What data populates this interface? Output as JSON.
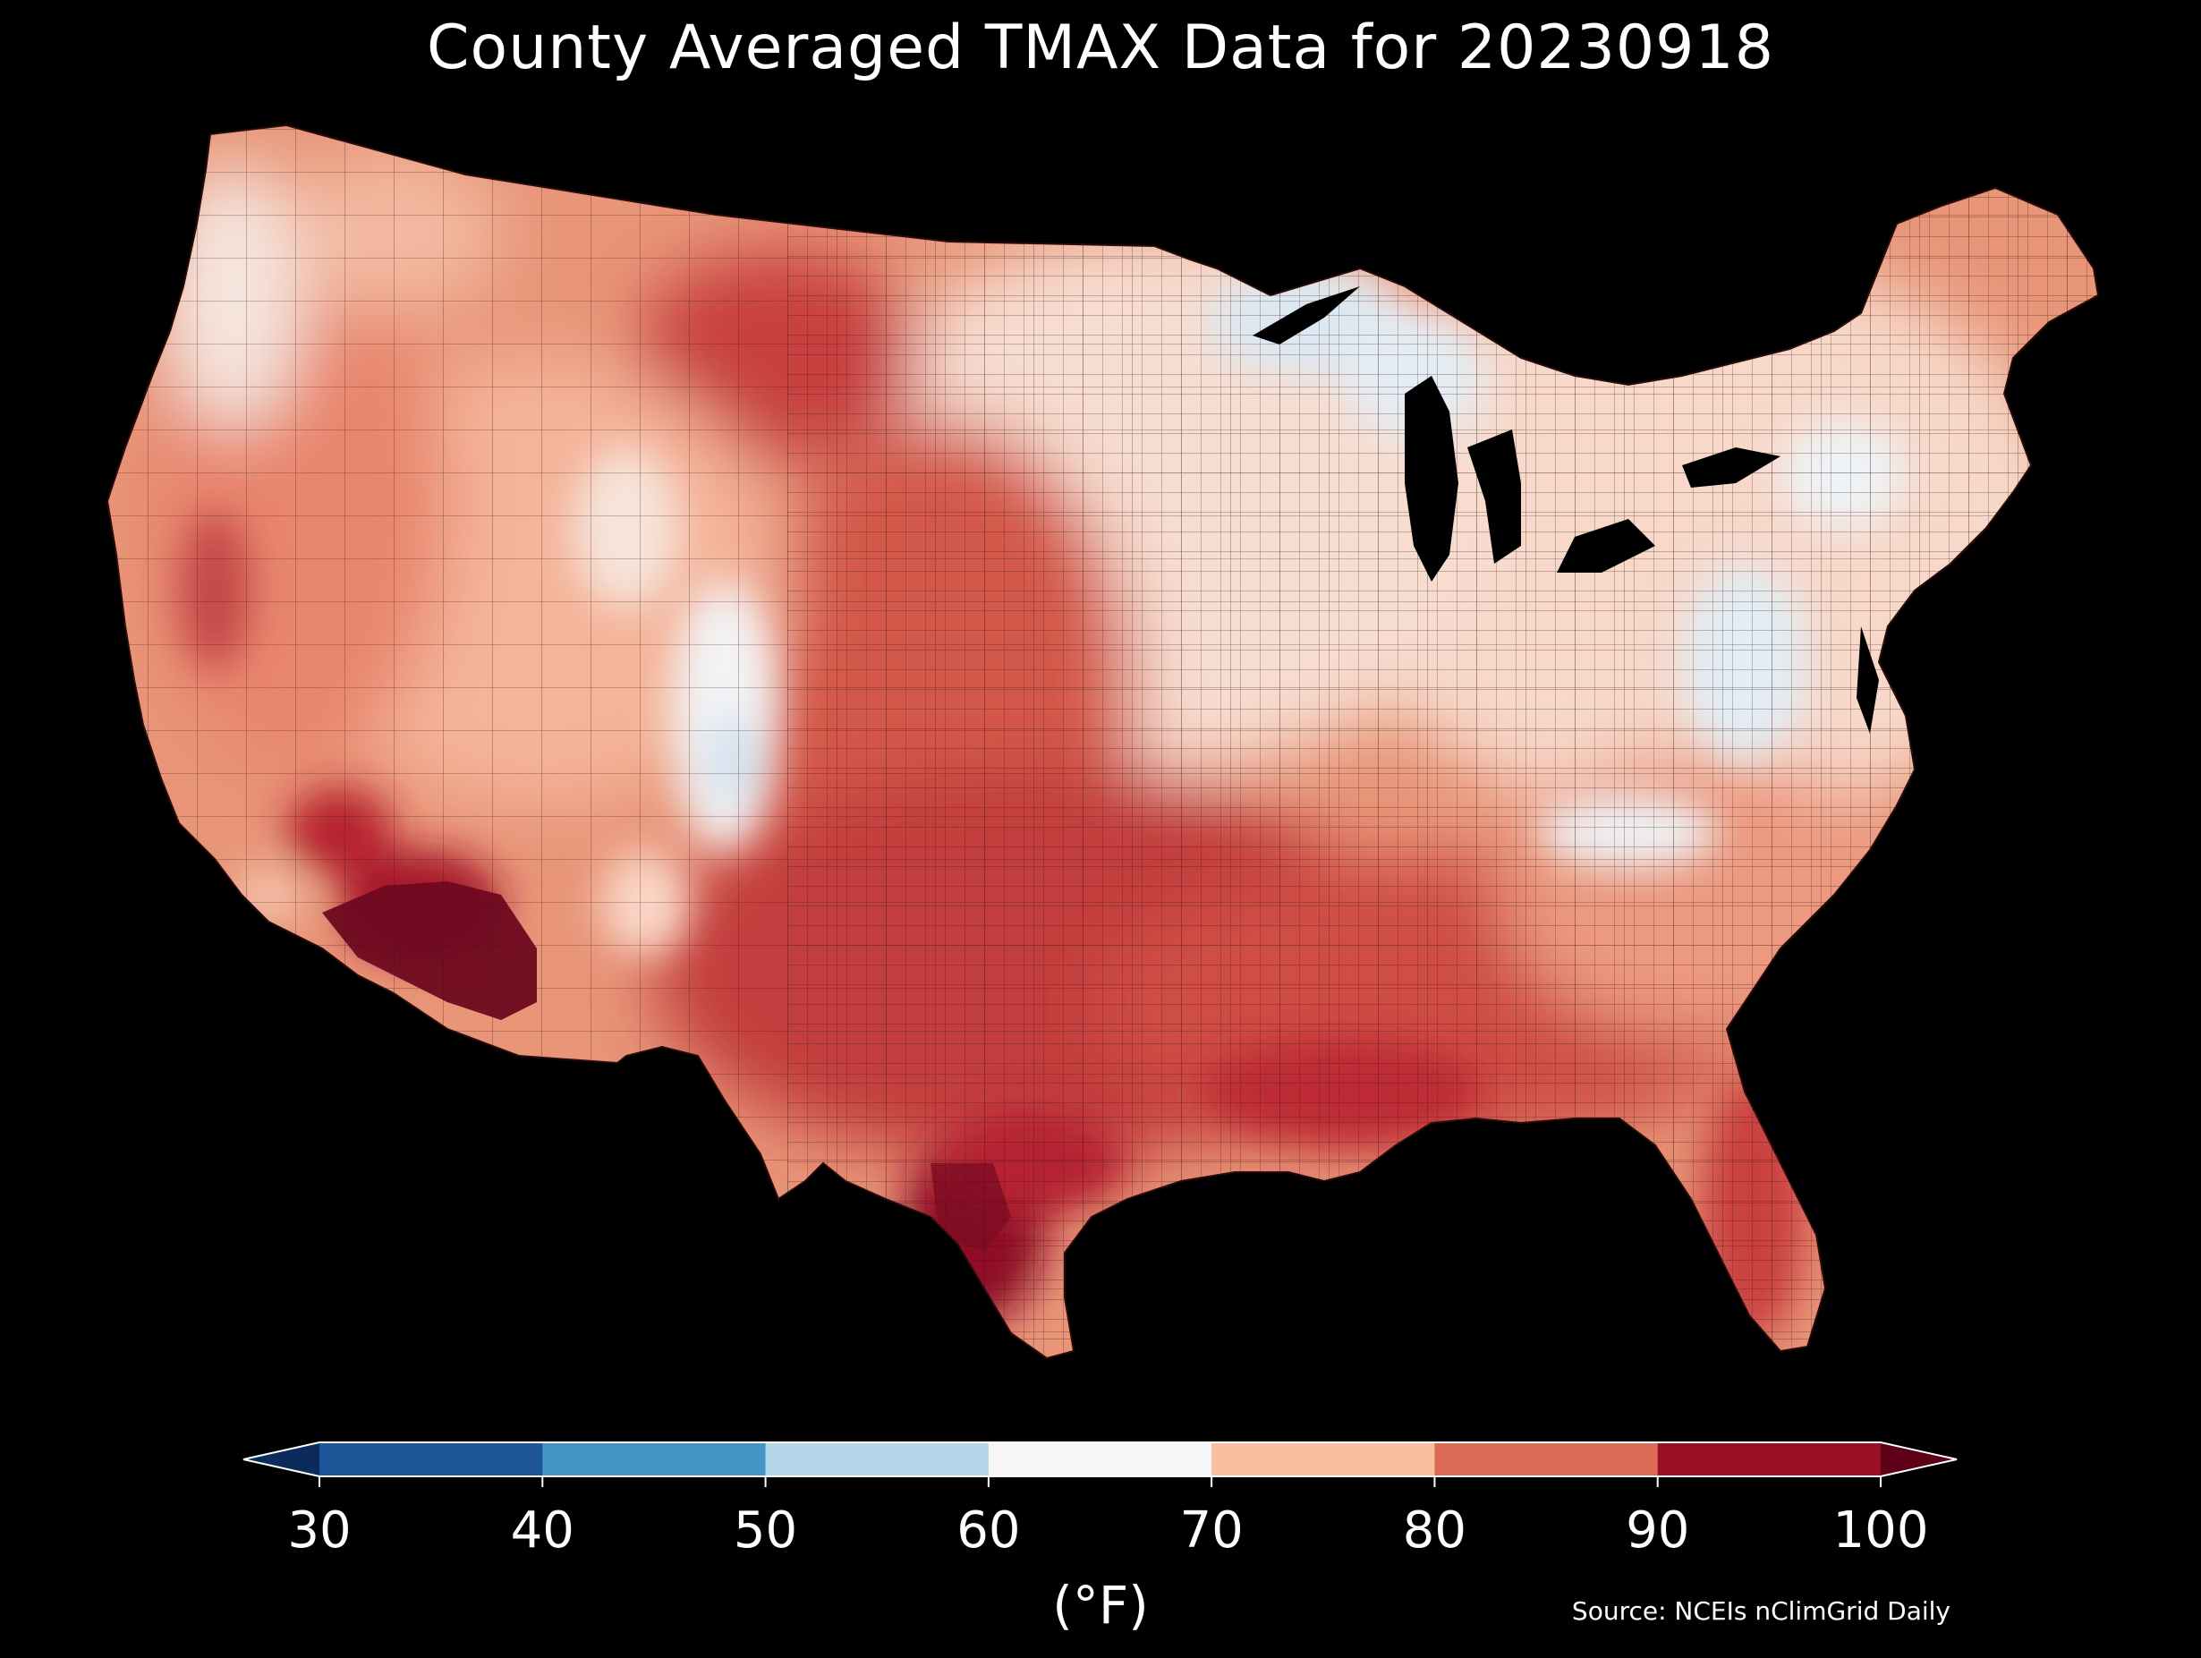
{
  "title": "County Averaged TMAX Data for 20230918",
  "colorbar": {
    "unit_label": "(°F)",
    "ticks": [
      "30",
      "40",
      "50",
      "60",
      "70",
      "80",
      "90",
      "100"
    ],
    "bins": [
      {
        "from": 30,
        "to": 40,
        "color": "#1d5597"
      },
      {
        "from": 40,
        "to": 50,
        "color": "#4495c6"
      },
      {
        "from": 50,
        "to": 60,
        "color": "#b4d7ea"
      },
      {
        "from": 60,
        "to": 70,
        "color": "#f6f6f6"
      },
      {
        "from": 70,
        "to": 80,
        "color": "#f8bfa1"
      },
      {
        "from": 80,
        "to": 90,
        "color": "#dc6a56"
      },
      {
        "from": 90,
        "to": 100,
        "color": "#9a1127"
      }
    ],
    "under_color": "#0b2b5c",
    "over_color": "#5e0018"
  },
  "source": "Source: NCEIs nClimGrid Daily",
  "map": {
    "region": "Contiguous United States",
    "units": "counties",
    "background": "#000000",
    "water_color": "#000000",
    "border_color": "#222222"
  },
  "chart_data": {
    "type": "heatmap",
    "variable": "TMAX",
    "date": "20230918",
    "vmin": 30,
    "vmax": 100,
    "regional_values_F": [
      {
        "region": "Pacific Northwest coast",
        "value": 68
      },
      {
        "region": "Northern Rockies / Montana plains",
        "value": 86
      },
      {
        "region": "Colorado high country",
        "value": 64
      },
      {
        "region": "Southern Plains / Texas",
        "value": 92
      },
      {
        "region": "Southwest desert (AZ / SE CA)",
        "value": 101
      },
      {
        "region": "Gulf Coast / Florida",
        "value": 91
      },
      {
        "region": "Upper Great Lakes",
        "value": 60
      },
      {
        "region": "Appalachians",
        "value": 66
      },
      {
        "region": "Northeast",
        "value": 70
      }
    ]
  }
}
